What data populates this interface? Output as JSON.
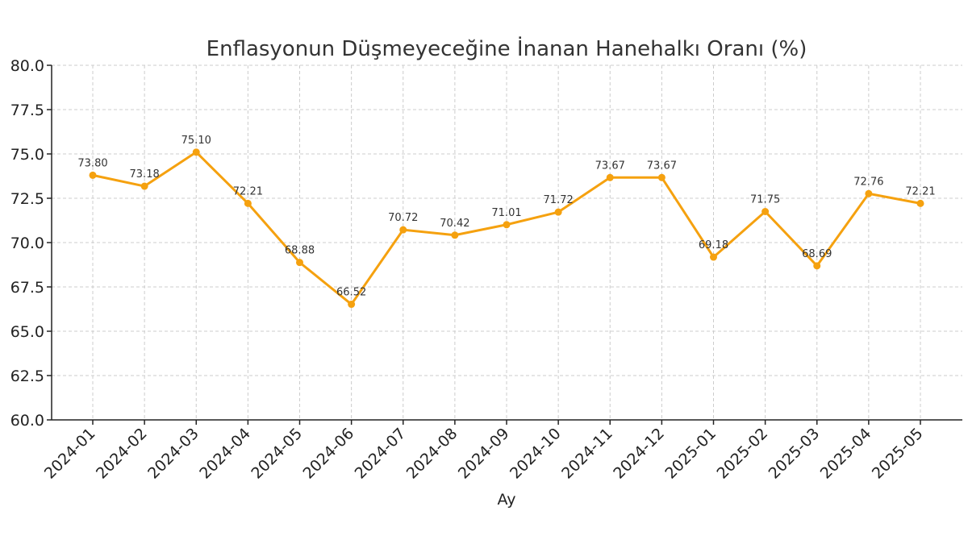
{
  "chart_data": {
    "type": "line",
    "title": "Enflasyonun Düşmeyeceğine İnanan Hanehalkı Oranı (%)",
    "xlabel": "Ay",
    "ylabel": "",
    "ylim": [
      60.0,
      80.0
    ],
    "yticks": [
      "60.0",
      "62.5",
      "65.0",
      "67.5",
      "70.0",
      "72.5",
      "75.0",
      "77.5",
      "80.0"
    ],
    "grid": true,
    "categories": [
      "2024-01",
      "2024-02",
      "2024-03",
      "2024-04",
      "2024-05",
      "2024-06",
      "2024-07",
      "2024-08",
      "2024-09",
      "2024-10",
      "2024-11",
      "2024-12",
      "2025-01",
      "2025-02",
      "2025-03",
      "2025-04",
      "2025-05"
    ],
    "series": [
      {
        "values": [
          73.8,
          73.18,
          75.1,
          72.21,
          68.88,
          66.52,
          70.72,
          70.42,
          71.01,
          71.72,
          73.67,
          73.67,
          69.18,
          71.75,
          68.69,
          72.76,
          72.21
        ],
        "labels": [
          "73.80",
          "73.18",
          "75.10",
          "72.21",
          "68.88",
          "66.52",
          "70.72",
          "70.42",
          "71.01",
          "71.72",
          "73.67",
          "73.67",
          "69.18",
          "71.75",
          "68.69",
          "72.76",
          "72.21"
        ],
        "color": "#f5a10f"
      }
    ]
  }
}
